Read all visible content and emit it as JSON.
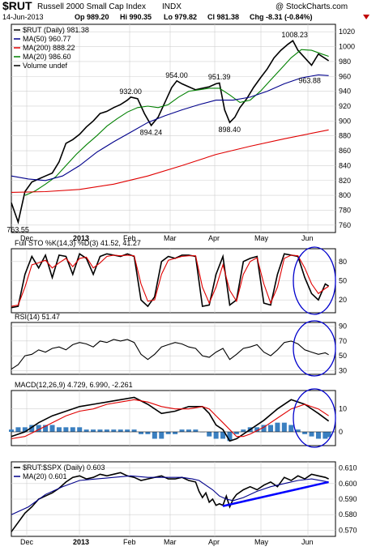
{
  "header": {
    "symbol": "$RUT",
    "name": "Russell 2000 Small Cap Index",
    "exchange": "INDX",
    "watermark": "@ StockCharts.com",
    "date": "14-Jun-2013",
    "open": "Op 989.20",
    "high": "Hi 990.35",
    "low": "Lo 979.82",
    "close": "Cl 981.38",
    "change": "Chg -8.31 (-0.84%)",
    "change_arrow": "down-triangle-icon"
  },
  "x_axis": {
    "labels": [
      "Dec",
      "2013",
      "Feb",
      "Mar",
      "Apr",
      "May",
      "Jun"
    ]
  },
  "chart_data": [
    {
      "type": "line",
      "panel": "price",
      "title": "$RUT (Daily) 981.38",
      "ylim": [
        750,
        1030
      ],
      "yticks": [
        "1020",
        "1000",
        "980",
        "960",
        "940",
        "920",
        "900",
        "880",
        "860",
        "840",
        "820",
        "800",
        "780",
        "760"
      ],
      "legend": [
        {
          "label": "$RUT (Daily) 981.38",
          "color": "#000000"
        },
        {
          "label": "MA(50) 960.77",
          "color": "#00008b"
        },
        {
          "label": "MA(200) 888.22",
          "color": "#e00000"
        },
        {
          "label": "MA(20) 986.60",
          "color": "#008000"
        },
        {
          "label": "Volume undef",
          "color": "#000000"
        }
      ],
      "annotations": [
        {
          "label": "763.55",
          "x": 4,
          "y": 763.55
        },
        {
          "label": "932.00",
          "x": 70,
          "y": 932
        },
        {
          "label": "894.24",
          "x": 82,
          "y": 894.24
        },
        {
          "label": "954.00",
          "x": 97,
          "y": 954
        },
        {
          "label": "951.39",
          "x": 122,
          "y": 951.39
        },
        {
          "label": "898.40",
          "x": 128,
          "y": 898.4
        },
        {
          "label": "1008.23",
          "x": 165,
          "y": 1008.23
        },
        {
          "label": "963.88",
          "x": 175,
          "y": 963.88
        }
      ],
      "series": [
        {
          "name": "$RUT",
          "color": "#000000",
          "x": [
            0,
            4,
            8,
            12,
            16,
            20,
            24,
            28,
            32,
            36,
            40,
            44,
            48,
            52,
            56,
            60,
            64,
            68,
            70,
            74,
            78,
            82,
            86,
            90,
            94,
            97,
            100,
            104,
            108,
            112,
            116,
            120,
            122,
            125,
            128,
            131,
            134,
            138,
            142,
            146,
            150,
            154,
            158,
            162,
            165,
            168,
            172,
            176,
            180,
            184,
            186
          ],
          "y": [
            790,
            764,
            805,
            818,
            822,
            826,
            830,
            845,
            870,
            875,
            882,
            892,
            900,
            910,
            913,
            918,
            922,
            928,
            932,
            930,
            910,
            894,
            905,
            925,
            945,
            954,
            950,
            946,
            942,
            944,
            946,
            950,
            951,
            915,
            898,
            905,
            918,
            930,
            945,
            958,
            970,
            985,
            995,
            1003,
            1008,
            995,
            985,
            975,
            990,
            984,
            981
          ]
        },
        {
          "name": "MA(20)",
          "color": "#008000",
          "x": [
            8,
            14,
            20,
            26,
            32,
            38,
            44,
            50,
            56,
            62,
            68,
            74,
            80,
            86,
            92,
            98,
            104,
            110,
            116,
            122,
            128,
            134,
            140,
            146,
            152,
            158,
            164,
            170,
            176,
            182,
            186
          ],
          "y": [
            800,
            806,
            815,
            825,
            840,
            855,
            868,
            880,
            893,
            903,
            912,
            918,
            920,
            918,
            922,
            932,
            940,
            942,
            944,
            944,
            935,
            925,
            928,
            940,
            955,
            970,
            985,
            996,
            995,
            990,
            987
          ]
        },
        {
          "name": "MA(50)",
          "color": "#00008b",
          "x": [
            0,
            10,
            20,
            30,
            40,
            50,
            60,
            70,
            80,
            90,
            100,
            110,
            120,
            130,
            140,
            150,
            160,
            170,
            180,
            186
          ],
          "y": [
            826,
            822,
            820,
            826,
            840,
            858,
            872,
            885,
            898,
            907,
            915,
            922,
            928,
            928,
            932,
            940,
            950,
            958,
            962,
            961
          ]
        },
        {
          "name": "MA(200)",
          "color": "#e00000",
          "x": [
            0,
            20,
            40,
            60,
            80,
            100,
            120,
            140,
            160,
            186
          ],
          "y": [
            804,
            805,
            808,
            815,
            826,
            840,
            855,
            866,
            876,
            888
          ]
        }
      ]
    },
    {
      "type": "line",
      "panel": "stochastic",
      "title": "Full STO %K(14,3) %D(3) 41.52, 41.27",
      "ylim": [
        0,
        100
      ],
      "yticks": [
        "80",
        "50",
        "20"
      ],
      "series": [
        {
          "name": "%K",
          "color": "#000000",
          "x": [
            0,
            4,
            8,
            12,
            16,
            20,
            24,
            28,
            32,
            36,
            40,
            44,
            48,
            52,
            56,
            60,
            64,
            68,
            72,
            76,
            80,
            84,
            88,
            92,
            96,
            100,
            104,
            108,
            112,
            116,
            120,
            124,
            128,
            132,
            136,
            140,
            144,
            148,
            152,
            156,
            160,
            164,
            168,
            172,
            176,
            180,
            184,
            186
          ],
          "y": [
            8,
            10,
            60,
            88,
            70,
            90,
            55,
            90,
            88,
            60,
            92,
            85,
            60,
            88,
            92,
            90,
            88,
            92,
            88,
            20,
            10,
            25,
            80,
            88,
            85,
            90,
            90,
            88,
            10,
            12,
            60,
            88,
            12,
            20,
            80,
            85,
            88,
            15,
            12,
            60,
            92,
            90,
            88,
            55,
            30,
            20,
            45,
            41.5
          ]
        },
        {
          "name": "%D",
          "color": "#e00000",
          "x": [
            0,
            4,
            8,
            12,
            16,
            20,
            24,
            28,
            32,
            36,
            40,
            44,
            48,
            52,
            56,
            60,
            64,
            68,
            72,
            76,
            80,
            84,
            88,
            92,
            96,
            100,
            104,
            108,
            112,
            116,
            120,
            124,
            128,
            132,
            136,
            140,
            144,
            148,
            152,
            156,
            160,
            164,
            168,
            172,
            176,
            180,
            184,
            186
          ],
          "y": [
            10,
            12,
            40,
            75,
            78,
            82,
            70,
            78,
            85,
            72,
            85,
            87,
            70,
            78,
            88,
            90,
            89,
            90,
            89,
            45,
            18,
            20,
            60,
            82,
            85,
            88,
            89,
            89,
            40,
            15,
            40,
            75,
            35,
            18,
            60,
            80,
            86,
            45,
            15,
            40,
            85,
            90,
            89,
            70,
            45,
            30,
            38,
            41.3
          ]
        }
      ]
    },
    {
      "type": "line",
      "panel": "rsi",
      "title": "RSI(14) 51.47",
      "ylim": [
        25,
        95
      ],
      "yticks": [
        "90",
        "70",
        "50",
        "30"
      ],
      "series": [
        {
          "name": "RSI",
          "color": "#000000",
          "x": [
            0,
            4,
            8,
            12,
            16,
            20,
            24,
            28,
            32,
            36,
            40,
            44,
            48,
            52,
            56,
            60,
            64,
            68,
            72,
            76,
            80,
            84,
            88,
            92,
            96,
            100,
            104,
            108,
            112,
            116,
            120,
            124,
            128,
            132,
            136,
            140,
            144,
            148,
            152,
            156,
            160,
            164,
            168,
            172,
            176,
            180,
            184,
            186
          ],
          "y": [
            32,
            38,
            50,
            52,
            58,
            55,
            60,
            62,
            58,
            65,
            68,
            66,
            62,
            70,
            68,
            72,
            70,
            72,
            68,
            52,
            45,
            52,
            62,
            65,
            68,
            66,
            62,
            60,
            50,
            48,
            55,
            60,
            45,
            52,
            60,
            62,
            65,
            55,
            50,
            58,
            68,
            70,
            66,
            58,
            55,
            52,
            54,
            51.5
          ]
        }
      ]
    },
    {
      "type": "bar",
      "panel": "macd",
      "title": "MACD(12,26,9) 4.729, 6.990, -2.261",
      "ylim": [
        -6,
        18
      ],
      "yticks": [
        "10",
        "0"
      ],
      "series": [
        {
          "name": "MACD",
          "color": "#000000",
          "x": [
            0,
            8,
            16,
            24,
            32,
            40,
            48,
            56,
            64,
            72,
            80,
            88,
            96,
            104,
            112,
            116,
            120,
            124,
            128,
            132,
            136,
            140,
            148,
            156,
            164,
            172,
            180,
            186
          ],
          "y": [
            -2,
            0,
            4,
            7,
            9,
            11,
            12,
            13,
            14,
            15,
            12,
            8,
            9,
            11,
            11,
            8,
            3,
            1,
            -4,
            -3,
            -1,
            1,
            5,
            10,
            14,
            12,
            8,
            4.7
          ]
        },
        {
          "name": "Signal",
          "color": "#e00000",
          "x": [
            0,
            8,
            16,
            24,
            32,
            40,
            48,
            56,
            64,
            72,
            80,
            88,
            96,
            104,
            112,
            116,
            120,
            124,
            128,
            132,
            136,
            140,
            148,
            156,
            164,
            172,
            180,
            186
          ],
          "y": [
            -3,
            -2,
            1,
            4,
            7,
            9,
            10,
            12,
            13,
            14,
            13,
            11,
            10,
            10,
            11,
            10,
            7,
            4,
            1,
            -2,
            -2,
            -1,
            2,
            6,
            10,
            12,
            10,
            7
          ]
        },
        {
          "name": "Histogram",
          "color": "#3a7fc0",
          "x": [
            0,
            4,
            8,
            12,
            16,
            20,
            24,
            28,
            32,
            36,
            40,
            44,
            48,
            52,
            56,
            60,
            64,
            68,
            72,
            76,
            80,
            84,
            88,
            92,
            96,
            100,
            104,
            108,
            112,
            116,
            120,
            124,
            128,
            132,
            136,
            140,
            144,
            148,
            152,
            156,
            160,
            164,
            168,
            172,
            176,
            180,
            184,
            186
          ],
          "y": [
            1,
            2,
            2,
            3,
            3,
            3,
            3,
            2,
            2,
            2,
            2,
            1,
            1,
            1,
            1,
            1,
            1,
            1,
            1,
            -1,
            -1,
            -3,
            -3,
            -1,
            -1,
            1,
            1,
            1,
            0,
            -2,
            -3,
            -3,
            -4,
            -1,
            1,
            2,
            2,
            3,
            3,
            4,
            4,
            3,
            1,
            -1,
            -2,
            -3,
            -3,
            -2.3
          ]
        }
      ]
    },
    {
      "type": "line",
      "panel": "ratio",
      "title": "$RUT:$SPX (Daily) 0.603",
      "ylim": [
        0.566,
        0.614
      ],
      "yticks": [
        "0.610",
        "0.600",
        "0.590",
        "0.580",
        "0.570"
      ],
      "legend": [
        {
          "label": "$RUT:$SPX (Daily) 0.603",
          "color": "#000000"
        },
        {
          "label": "MA(20) 0.601",
          "color": "#00008b"
        }
      ],
      "series": [
        {
          "name": "$RUT:$SPX",
          "color": "#000000",
          "x": [
            0,
            4,
            8,
            12,
            16,
            20,
            24,
            28,
            32,
            36,
            40,
            44,
            48,
            52,
            56,
            60,
            64,
            68,
            72,
            76,
            80,
            84,
            88,
            92,
            96,
            100,
            104,
            108,
            110,
            112,
            114,
            116,
            118,
            120,
            122,
            124,
            126,
            128,
            130,
            132,
            136,
            140,
            144,
            148,
            152,
            156,
            160,
            164,
            168,
            172,
            176,
            180,
            184,
            186
          ],
          "y": [
            0.569,
            0.575,
            0.581,
            0.585,
            0.59,
            0.592,
            0.594,
            0.597,
            0.601,
            0.604,
            0.605,
            0.603,
            0.604,
            0.606,
            0.605,
            0.606,
            0.607,
            0.605,
            0.604,
            0.602,
            0.603,
            0.604,
            0.605,
            0.603,
            0.603,
            0.604,
            0.602,
            0.601,
            0.595,
            0.591,
            0.594,
            0.588,
            0.59,
            0.586,
            0.587,
            0.586,
            0.592,
            0.585,
            0.59,
            0.593,
            0.596,
            0.598,
            0.596,
            0.599,
            0.601,
            0.598,
            0.604,
            0.602,
            0.605,
            0.603,
            0.606,
            0.605,
            0.604,
            0.603
          ]
        },
        {
          "name": "MA(20)",
          "color": "#00008b",
          "x": [
            0,
            10,
            20,
            30,
            40,
            50,
            60,
            70,
            80,
            90,
            100,
            106,
            110,
            114,
            118,
            122,
            126,
            130,
            136,
            144,
            152,
            160,
            168,
            176,
            186
          ],
          "y": [
            0.58,
            0.585,
            0.593,
            0.598,
            0.602,
            0.603,
            0.604,
            0.605,
            0.604,
            0.604,
            0.604,
            0.603,
            0.602,
            0.599,
            0.596,
            0.592,
            0.59,
            0.589,
            0.591,
            0.595,
            0.598,
            0.6,
            0.602,
            0.603,
            0.601
          ]
        }
      ]
    }
  ]
}
